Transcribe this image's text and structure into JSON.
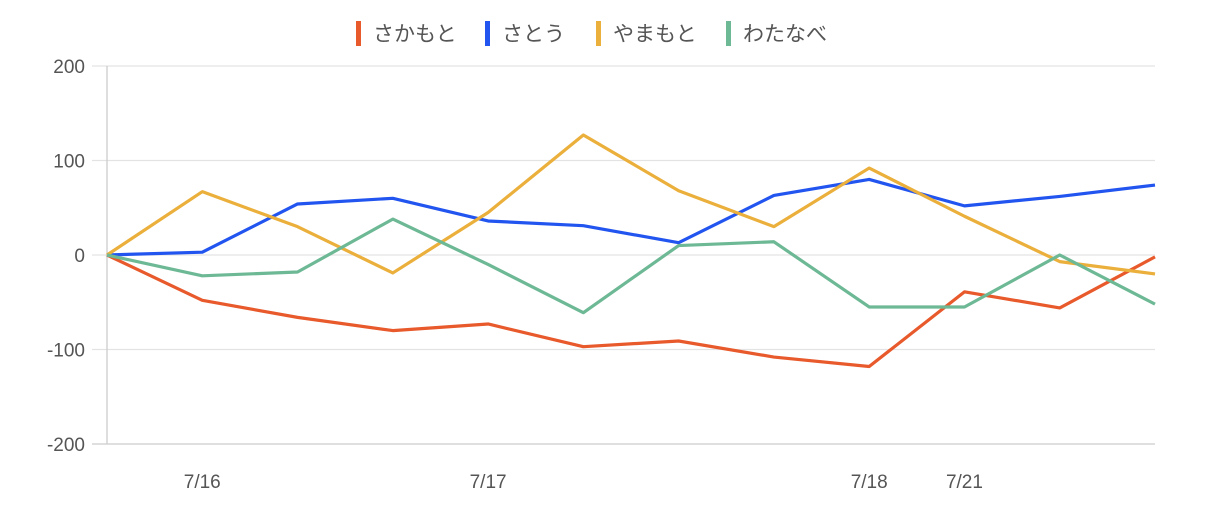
{
  "chart_data": {
    "type": "line",
    "title": "",
    "xlabel": "",
    "ylabel": "",
    "ylim": [
      -200,
      200
    ],
    "yticks": [
      200,
      100,
      0,
      -100,
      -200
    ],
    "grid": true,
    "legend_position": "top-center",
    "x_count": 12,
    "x_tick_labels": [
      {
        "index": 1,
        "label": "7/16"
      },
      {
        "index": 4,
        "label": "7/17"
      },
      {
        "index": 8,
        "label": "7/18"
      },
      {
        "index": 9,
        "label": "7/21"
      }
    ],
    "series": [
      {
        "name": "さかもと",
        "color": "#e8592b",
        "values": [
          0,
          -48,
          -66,
          -80,
          -73,
          -97,
          -91,
          -108,
          -118,
          -39,
          -56,
          -2
        ]
      },
      {
        "name": "さとう",
        "color": "#2255f0",
        "values": [
          0,
          3,
          54,
          60,
          36,
          31,
          13,
          63,
          80,
          52,
          62,
          74
        ]
      },
      {
        "name": "やまもと",
        "color": "#ebaf3b",
        "values": [
          0,
          67,
          30,
          -19,
          45,
          127,
          68,
          30,
          92,
          41,
          -7,
          -20
        ]
      },
      {
        "name": "わたなべ",
        "color": "#6db895",
        "values": [
          0,
          -22,
          -18,
          38,
          -10,
          -61,
          10,
          14,
          -55,
          -55,
          0,
          -52
        ]
      }
    ]
  }
}
